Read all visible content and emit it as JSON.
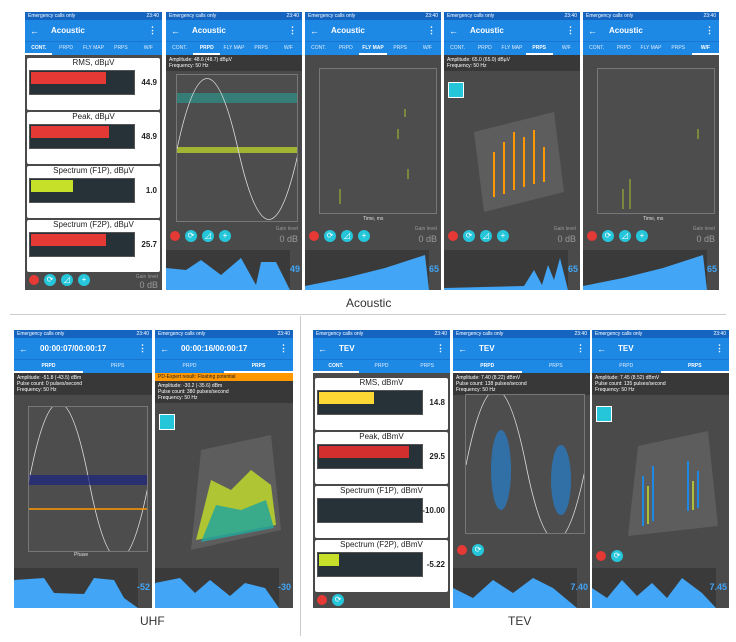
{
  "status_text": "Emergency calls only",
  "status_time": "23:40",
  "captions": {
    "acoustic": "Acoustic",
    "uhf": "UHF",
    "tev": "TEV"
  },
  "acoustic": {
    "title": "Acoustic",
    "tabs": [
      "CONT.",
      "PRPD",
      "FLY MAP",
      "PRPS",
      "W/F"
    ],
    "cont": {
      "meters": [
        {
          "name": "RMS, dBµV",
          "value": "44.9",
          "color": "#e53935",
          "fill": 0.75
        },
        {
          "name": "Peak, dBµV",
          "value": "48.9",
          "color": "#e53935",
          "fill": 0.78
        },
        {
          "name": "Spectrum (F1P), dBµV",
          "value": "1.0",
          "color": "#c6e02a",
          "fill": 0.42
        },
        {
          "name": "Spectrum (F2P), dBµV",
          "value": "25.7",
          "color": "#e53935",
          "fill": 0.75
        }
      ],
      "gain_label": "Gain level",
      "gain_value": "0 dB"
    },
    "prpd": {
      "amplitude": "Amplitude: 48.6 (48.7) dBµV",
      "frequency": "Frequency: 50 Hz",
      "gain_label": "Gain level",
      "gain_value": "0 dB",
      "trend_value": "49"
    },
    "flymap": {
      "gain_label": "Gain level",
      "gain_value": "0 dB",
      "trend_value": "65",
      "xlabel": "Time, ms",
      "ylabel": "Amplitude, dBµV"
    },
    "prps": {
      "amplitude": "Amplitude: 65.0 (65.0) dBµV",
      "frequency": "Frequency: 50 Hz",
      "gain_label": "Gain level",
      "gain_value": "0 dB",
      "trend_value": "65"
    },
    "wf": {
      "gain_label": "Gain level",
      "gain_value": "0 dB",
      "trend_value": "65",
      "xlabel": "Time, ms"
    }
  },
  "uhf": {
    "prpd": {
      "title": "00:00:07/00:00:17",
      "tabs": [
        "PRPD",
        "PRPS"
      ],
      "amplitude": "Amplitude: -51.8 (-43.5) dBm",
      "pulse": "Pulse count: 0 pulses/second",
      "frequency": "Frequency: 50 Hz",
      "trend_value": "-52",
      "xlabel": "Phase",
      "ylabel": "Amplitude, dBm"
    },
    "prps": {
      "title": "00:00:16/00:00:17",
      "tabs": [
        "PRPD",
        "PRPS"
      ],
      "expert": "PD-Expert result: Floating potential",
      "amplitude": "Amplitude: -30.2 (-35.6) dBm",
      "pulse": "Pulse count: 380 pulses/second",
      "frequency": "Frequency: 50 Hz",
      "trend_value": "-30"
    }
  },
  "tev": {
    "cont": {
      "title": "TEV",
      "tabs": [
        "CONT.",
        "PRPD",
        "PRPS"
      ],
      "meters": [
        {
          "name": "RMS, dBmV",
          "value": "14.8",
          "color": "#fdd835",
          "fill": 0.55
        },
        {
          "name": "Peak, dBmV",
          "value": "29.5",
          "color": "#d32f2f",
          "fill": 0.85
        },
        {
          "name": "Spectrum (F1P), dBmV",
          "value": "-10.00",
          "color": "#263238",
          "fill": 0.0
        },
        {
          "name": "Spectrum (F2P), dBmV",
          "value": "-5.22",
          "color": "#c6e02a",
          "fill": 0.2
        }
      ]
    },
    "prpd": {
      "title": "TEV",
      "tabs": [
        "PRPD",
        "PRPS"
      ],
      "amplitude": "Amplitude: 7.40 (8.22) dBmV",
      "pulse": "Pulse count: 138 pulses/second",
      "frequency": "Frequency: 50 Hz",
      "trend_value": "7.40"
    },
    "prps": {
      "title": "TEV",
      "tabs": [
        "PRPD",
        "PRPS"
      ],
      "amplitude": "Amplitude: 7.45 (8.52) dBmV",
      "pulse": "Pulse count: 135 pulses/second",
      "frequency": "Frequency: 50 Hz",
      "trend_value": "7.45"
    }
  }
}
